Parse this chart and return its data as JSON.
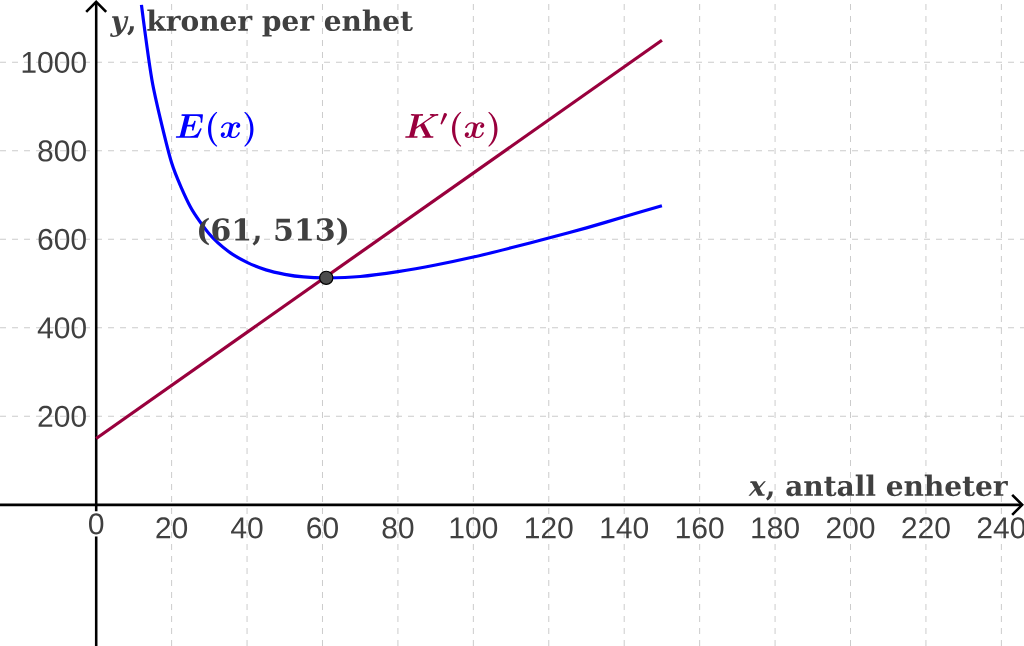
{
  "chart_data": {
    "type": "line",
    "xlabel": "*x*, antall enheter",
    "ylabel": "*y*, kroner per enhet",
    "xlim": [
      -25.5,
      246
    ],
    "ylim": [
      -319,
      1141
    ],
    "xticks": [
      0,
      20,
      40,
      60,
      80,
      100,
      120,
      140,
      160,
      180,
      200,
      220,
      240
    ],
    "yticks": [
      200,
      400,
      600,
      800,
      1000
    ],
    "grid": true,
    "legend": false,
    "marker": "none",
    "line_style": "solid",
    "series": [
      {
        "name": "E(x)",
        "color": "#0000ff",
        "x": [
          12,
          15,
          20,
          25,
          30,
          35,
          40,
          45,
          50,
          55,
          61,
          70,
          80,
          90,
          100,
          110,
          120,
          130,
          140,
          150
        ],
        "values": [
          1130,
          950,
          773,
          673,
          612,
          573,
          548,
          531,
          521,
          515,
          513,
          516,
          527,
          542,
          560,
          581,
          603,
          626,
          651,
          676
        ]
      },
      {
        "name": "K'(x)",
        "color": "#99003d",
        "x": [
          0,
          150
        ],
        "values": [
          150,
          1050
        ]
      }
    ],
    "annotations": [
      {
        "text": "(61, 513)",
        "x": 61,
        "y": 513
      }
    ]
  }
}
